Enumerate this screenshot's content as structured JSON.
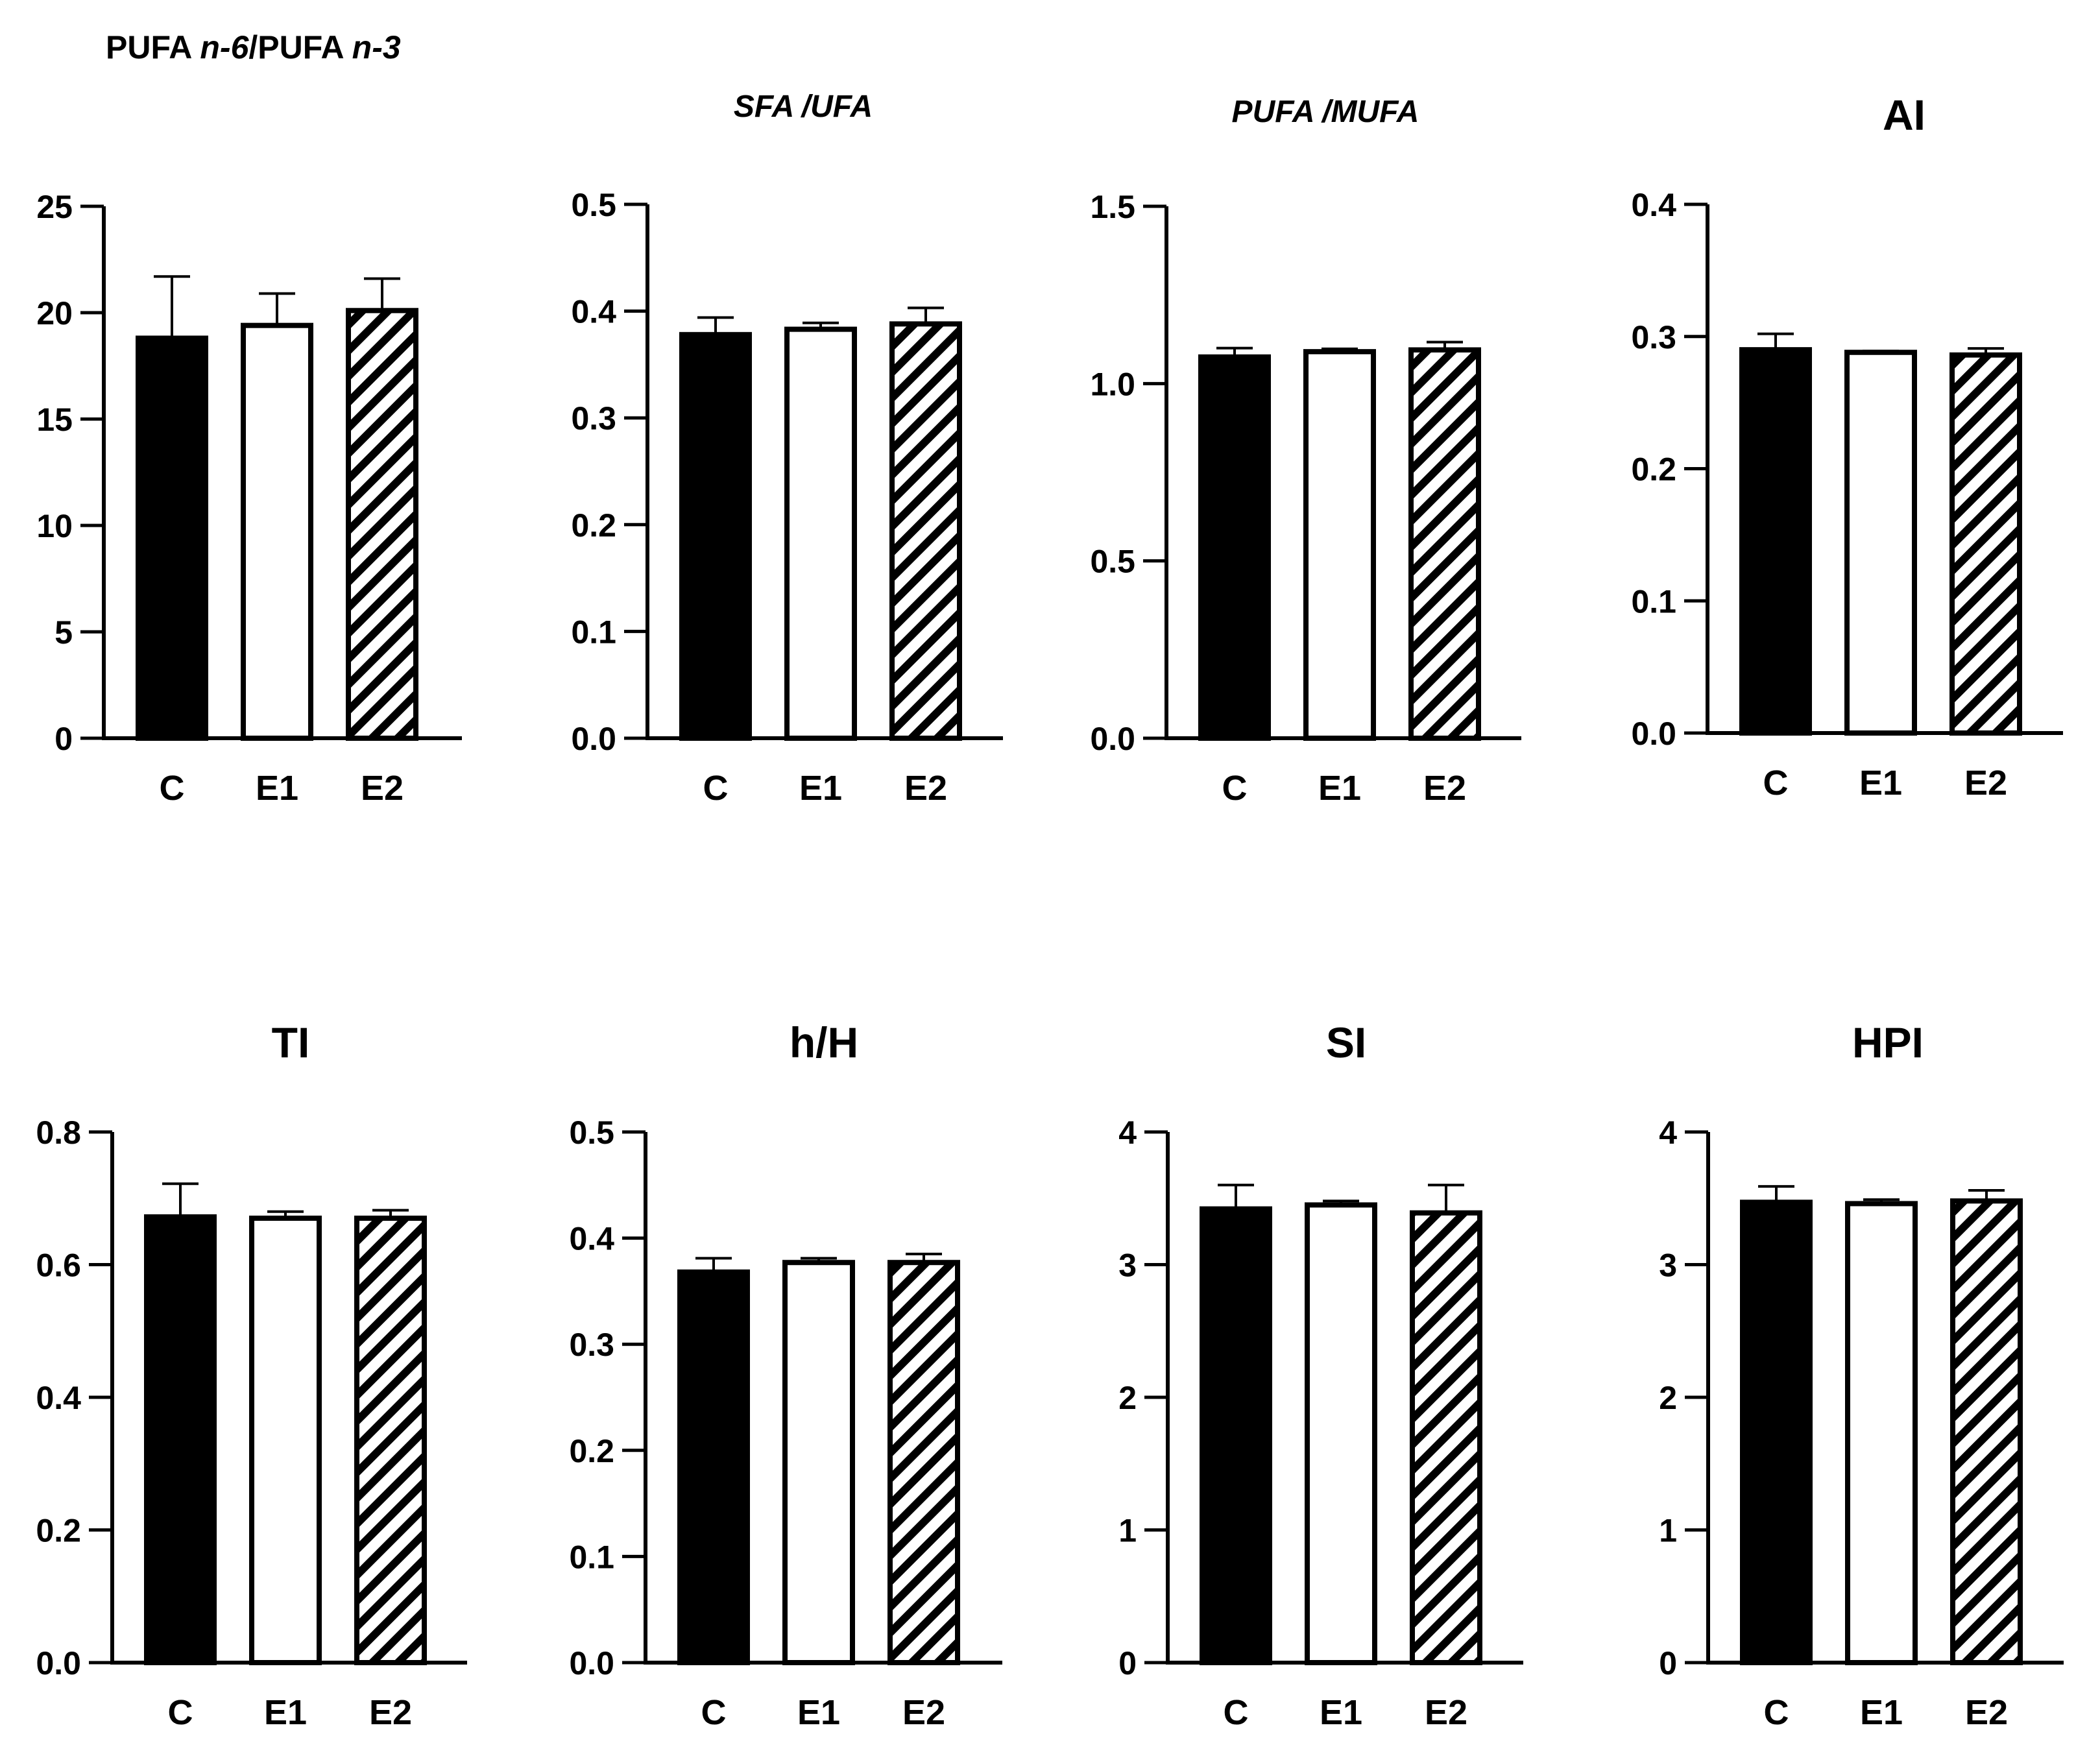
{
  "figure": {
    "bar_colors": {
      "C": "#000000",
      "E1": "#ffffff",
      "E2": "hatch"
    },
    "stroke_color": "#000000"
  },
  "chart_data": [
    {
      "id": "pufa-n6-n3",
      "type": "bar",
      "title": [
        {
          "text": "PUFA "
        },
        {
          "text": "n-6",
          "italic": true
        },
        {
          "text": "/PUFA "
        },
        {
          "text": "n-3",
          "italic": true
        }
      ],
      "categories": [
        "C",
        "E1",
        "E2"
      ],
      "values": [
        18.8,
        19.4,
        20.1
      ],
      "errors": [
        2.9,
        1.5,
        1.5
      ],
      "ylim": [
        0,
        25
      ],
      "yticks": [
        0,
        5,
        10,
        15,
        20,
        25
      ],
      "ytick_labels": [
        "0",
        "5",
        "10",
        "15",
        "20",
        "25"
      ]
    },
    {
      "id": "sfa-ufa",
      "type": "bar",
      "title": [
        {
          "text": "SFA /UFA",
          "italic": true
        }
      ],
      "categories": [
        "C",
        "E1",
        "E2"
      ],
      "values": [
        0.378,
        0.383,
        0.388
      ],
      "errors": [
        0.016,
        0.006,
        0.015
      ],
      "ylim": [
        0,
        0.5
      ],
      "yticks": [
        0,
        0.1,
        0.2,
        0.3,
        0.4,
        0.5
      ],
      "ytick_labels": [
        "0.0",
        "0.1",
        "0.2",
        "0.3",
        "0.4",
        "0.5"
      ]
    },
    {
      "id": "pufa-mufa",
      "type": "bar",
      "title": [
        {
          "text": "PUFA /MUFA",
          "italic": true
        }
      ],
      "categories": [
        "C",
        "E1",
        "E2"
      ],
      "values": [
        1.075,
        1.09,
        1.095
      ],
      "errors": [
        0.025,
        0.008,
        0.022
      ],
      "ylim": [
        0,
        1.5
      ],
      "yticks": [
        0,
        0.5,
        1.0,
        1.5
      ],
      "ytick_labels": [
        "0.0",
        "0.5",
        "1.0",
        "1.5"
      ]
    },
    {
      "id": "ai",
      "type": "bar",
      "title": [
        {
          "text": "AI"
        }
      ],
      "categories": [
        "C",
        "E1",
        "E2"
      ],
      "values": [
        0.29,
        0.288,
        0.286
      ],
      "errors": [
        0.012,
        0.001,
        0.005
      ],
      "ylim": [
        0,
        0.4
      ],
      "yticks": [
        0,
        0.1,
        0.2,
        0.3,
        0.4
      ],
      "ytick_labels": [
        "0.0",
        "0.1",
        "0.2",
        "0.3",
        "0.4"
      ]
    },
    {
      "id": "ti",
      "type": "bar",
      "title": [
        {
          "text": "TI"
        }
      ],
      "categories": [
        "C",
        "E1",
        "E2"
      ],
      "values": [
        0.672,
        0.67,
        0.67
      ],
      "errors": [
        0.05,
        0.01,
        0.012
      ],
      "ylim": [
        0,
        0.8
      ],
      "yticks": [
        0,
        0.2,
        0.4,
        0.6,
        0.8
      ],
      "ytick_labels": [
        "0.0",
        "0.2",
        "0.4",
        "0.6",
        "0.8"
      ]
    },
    {
      "id": "hH",
      "type": "bar",
      "title": [
        {
          "text": "h/H"
        }
      ],
      "categories": [
        "C",
        "E1",
        "E2"
      ],
      "values": [
        0.368,
        0.377,
        0.377
      ],
      "errors": [
        0.013,
        0.004,
        0.008
      ],
      "ylim": [
        0,
        0.5
      ],
      "yticks": [
        0,
        0.1,
        0.2,
        0.3,
        0.4,
        0.5
      ],
      "ytick_labels": [
        "0.0",
        "0.1",
        "0.2",
        "0.3",
        "0.4",
        "0.5"
      ]
    },
    {
      "id": "si",
      "type": "bar",
      "title": [
        {
          "text": "SI"
        }
      ],
      "categories": [
        "C",
        "E1",
        "E2"
      ],
      "values": [
        3.42,
        3.45,
        3.39
      ],
      "errors": [
        0.18,
        0.03,
        0.21
      ],
      "ylim": [
        0,
        4
      ],
      "yticks": [
        0,
        1,
        2,
        3,
        4
      ],
      "ytick_labels": [
        "0",
        "1",
        "2",
        "3",
        "4"
      ]
    },
    {
      "id": "hpi",
      "type": "bar",
      "title": [
        {
          "text": "HPI"
        }
      ],
      "categories": [
        "C",
        "E1",
        "E2"
      ],
      "values": [
        3.47,
        3.46,
        3.48
      ],
      "errors": [
        0.12,
        0.03,
        0.08
      ],
      "ylim": [
        0,
        4
      ],
      "yticks": [
        0,
        1,
        2,
        3,
        4
      ],
      "ytick_labels": [
        "0",
        "1",
        "2",
        "3",
        "4"
      ]
    }
  ]
}
